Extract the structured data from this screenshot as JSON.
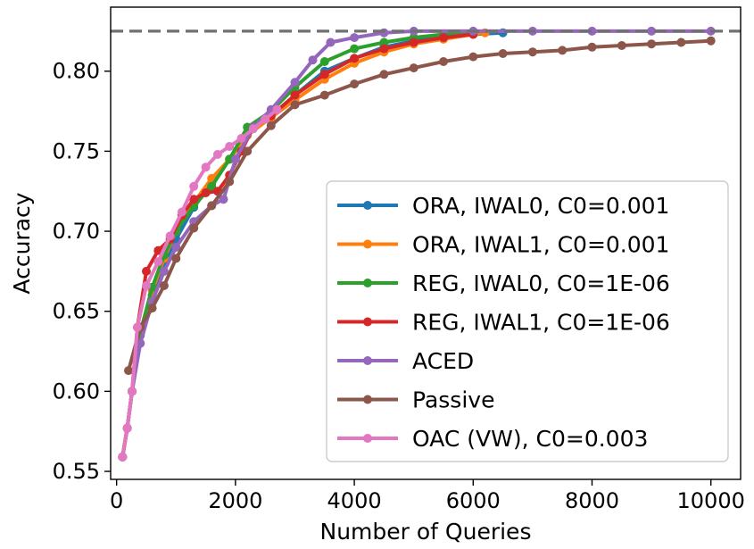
{
  "chart_data": {
    "type": "line",
    "xlabel": "Number of Queries",
    "ylabel": "Accuracy",
    "xlim": [
      -100,
      10500
    ],
    "ylim": [
      0.545,
      0.84
    ],
    "xticks": [
      0,
      2000,
      4000,
      6000,
      8000,
      10000
    ],
    "yticks": [
      0.55,
      0.6,
      0.65,
      0.7,
      0.75,
      0.8
    ],
    "xtick_labels": [
      "0",
      "2000",
      "4000",
      "6000",
      "8000",
      "10000"
    ],
    "ytick_labels": [
      "0.55",
      "0.60",
      "0.65",
      "0.70",
      "0.75",
      "0.80"
    ],
    "reference_line": {
      "y": 0.825,
      "style": "dashed",
      "color": "#707070"
    },
    "grid": false,
    "legend_position": "lower-right",
    "series": [
      {
        "name": "ORA, IWAL0, C0=0.001",
        "color": "#1f77b4",
        "x": [
          100,
          180,
          260,
          400,
          600,
          800,
          1000,
          1300,
          1600,
          1900,
          2200,
          2600,
          3000,
          3500,
          4000,
          4500,
          5000,
          5500,
          6000,
          6500
        ],
        "y": [
          0.559,
          0.577,
          0.6,
          0.635,
          0.66,
          0.68,
          0.695,
          0.715,
          0.73,
          0.745,
          0.76,
          0.772,
          0.785,
          0.8,
          0.808,
          0.815,
          0.819,
          0.821,
          0.823,
          0.824
        ]
      },
      {
        "name": "ORA, IWAL1, C0=0.001",
        "color": "#ff7f0e",
        "x": [
          100,
          180,
          260,
          400,
          600,
          800,
          1000,
          1300,
          1600,
          1900,
          2200,
          2600,
          3000,
          3500,
          4000,
          4500,
          5000,
          5500,
          6000,
          6200
        ],
        "y": [
          0.559,
          0.577,
          0.6,
          0.636,
          0.663,
          0.683,
          0.7,
          0.718,
          0.733,
          0.745,
          0.76,
          0.771,
          0.782,
          0.795,
          0.805,
          0.812,
          0.817,
          0.82,
          0.823,
          0.824
        ]
      },
      {
        "name": "REG, IWAL0, C0=1E-06",
        "color": "#2ca02c",
        "x": [
          100,
          180,
          260,
          400,
          600,
          800,
          1000,
          1300,
          1600,
          1900,
          2200,
          2600,
          3000,
          3500,
          4000,
          4500,
          5000,
          5500,
          6000
        ],
        "y": [
          0.559,
          0.577,
          0.6,
          0.637,
          0.665,
          0.685,
          0.7,
          0.716,
          0.728,
          0.745,
          0.765,
          0.775,
          0.79,
          0.806,
          0.814,
          0.818,
          0.821,
          0.823,
          0.824
        ]
      },
      {
        "name": "REG, IWAL1, C0=1E-06",
        "color": "#d62728",
        "x": [
          100,
          180,
          260,
          350,
          500,
          700,
          900,
          1100,
          1300,
          1500,
          1700,
          1900,
          2100,
          2300,
          2600,
          3000,
          3500,
          4000,
          4500,
          5000,
          5500,
          6000
        ],
        "y": [
          0.559,
          0.577,
          0.6,
          0.64,
          0.675,
          0.688,
          0.695,
          0.71,
          0.72,
          0.724,
          0.725,
          0.735,
          0.75,
          0.765,
          0.772,
          0.785,
          0.798,
          0.808,
          0.814,
          0.818,
          0.821,
          0.823
        ]
      },
      {
        "name": "ACED",
        "color": "#9467bd",
        "x": [
          100,
          180,
          260,
          400,
          600,
          800,
          1000,
          1300,
          1600,
          1800,
          2000,
          2300,
          2600,
          3000,
          3300,
          3600,
          4000,
          4500,
          5000,
          6000,
          7000,
          8000,
          9000,
          10000
        ],
        "y": [
          0.559,
          0.577,
          0.6,
          0.63,
          0.656,
          0.675,
          0.69,
          0.706,
          0.716,
          0.72,
          0.745,
          0.765,
          0.776,
          0.793,
          0.807,
          0.818,
          0.821,
          0.824,
          0.825,
          0.825,
          0.825,
          0.825,
          0.825,
          0.825
        ]
      },
      {
        "name": "Passive",
        "color": "#8c564b",
        "x": [
          200,
          400,
          600,
          800,
          1000,
          1300,
          1600,
          1900,
          2200,
          2600,
          3000,
          3500,
          4000,
          4500,
          5000,
          5500,
          6000,
          6500,
          7000,
          7500,
          8000,
          8500,
          9000,
          9500,
          10000
        ],
        "y": [
          0.613,
          0.64,
          0.652,
          0.666,
          0.683,
          0.702,
          0.716,
          0.731,
          0.75,
          0.766,
          0.779,
          0.785,
          0.792,
          0.798,
          0.802,
          0.806,
          0.809,
          0.811,
          0.812,
          0.813,
          0.815,
          0.816,
          0.817,
          0.818,
          0.819
        ]
      },
      {
        "name": "OAC (VW), C0=0.003",
        "color": "#e377c2",
        "x": [
          100,
          180,
          260,
          350,
          500,
          700,
          900,
          1100,
          1300,
          1500,
          1700,
          1900,
          2100,
          2300,
          2500,
          2700
        ],
        "y": [
          0.559,
          0.577,
          0.6,
          0.64,
          0.666,
          0.681,
          0.697,
          0.712,
          0.728,
          0.74,
          0.748,
          0.753,
          0.758,
          0.764,
          0.77,
          0.776
        ]
      }
    ]
  }
}
